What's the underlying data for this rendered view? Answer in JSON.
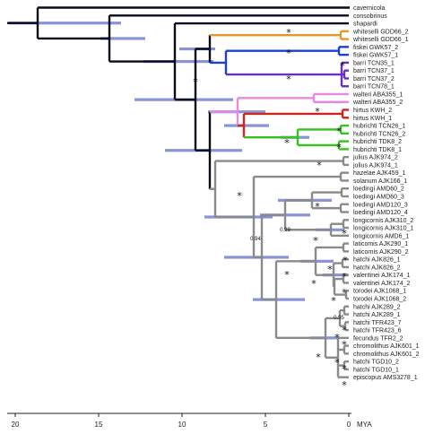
{
  "tree": {
    "tips": [
      "cavernicola",
      "consobrinus",
      "shapardi",
      "whiteselli GDD66_2",
      "whiteselli GDD66_1",
      "fiskei GWK57_2",
      "fiskei GWK57_1",
      "barri TCN35_1",
      "barri TCN37_1",
      "barri TCN37_2",
      "barri TCN78_1",
      "walteri ABA355_1",
      "walteri ABA355_2",
      "hirtus KWH_2",
      "hirtus KWH_1",
      "hubrichti TCN26_1",
      "hubrichti TCN26_2",
      "hubrichti TDK8_2",
      "hubrichti TDK8_1",
      "julius AJK974_2",
      "julius AJK974_1",
      "hazelae AJK459_1",
      "solanum AJK166_1",
      "loedingi AMD60_2",
      "loedingi AMD60_3",
      "loedingi AMD120_3",
      "loedingi AMD120_4",
      "longicornis AJK310_2",
      "longicornis AJK310_1",
      "longicornis AMD6_1",
      "laticomis AJK290_1",
      "laticornis AJK290_2",
      "hatchi AJK826_1",
      "hatchi AJK826_2",
      "valentinei AJK174_1",
      "valentinei AJK174_2",
      "torodei AJK1068_1",
      "torodei AJK1068_2",
      "hatchi AJK289_2",
      "hatchi AJK289_1",
      "hatchi TFR423_7",
      "hatchi TFR423_6",
      "fecundus TFR2_2",
      "chromolithus AJK601_1",
      "chromolithus AJK601_2",
      "hatchi TGD10_2",
      "hatchi TGD10_1",
      "episcopus AMS3278_1"
    ],
    "support_values": [
      "0.99",
      "0.94",
      "0.95"
    ],
    "star_label": "*"
  },
  "axis": {
    "ticks": [
      "20",
      "15",
      "10",
      "5",
      "0"
    ],
    "unit_label": "MYA",
    "tick_values": [
      20,
      15,
      10,
      5,
      0
    ],
    "range": [
      22,
      0
    ]
  },
  "colors": {
    "clade_orange": "#e8962a",
    "clade_blue": "#1a3fd6",
    "clade_purple": "#6a2fc0",
    "clade_pink": "#e58ae0",
    "clade_red": "#d0221e",
    "clade_green": "#36c21c",
    "backbone": "#0a0a1a",
    "grey": "#8a8a8a",
    "interval_bar": "#6a78cf"
  }
}
